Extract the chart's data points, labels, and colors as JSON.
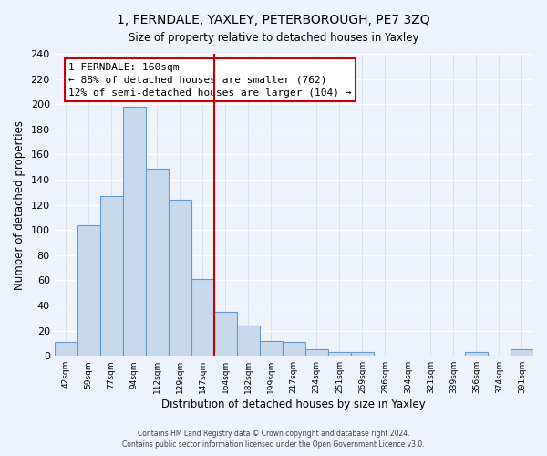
{
  "title": "1, FERNDALE, YAXLEY, PETERBOROUGH, PE7 3ZQ",
  "subtitle": "Size of property relative to detached houses in Yaxley",
  "xlabel": "Distribution of detached houses by size in Yaxley",
  "ylabel": "Number of detached properties",
  "bar_color": "#c8d9ee",
  "bar_edge_color": "#6699cc",
  "bin_labels": [
    "42sqm",
    "59sqm",
    "77sqm",
    "94sqm",
    "112sqm",
    "129sqm",
    "147sqm",
    "164sqm",
    "182sqm",
    "199sqm",
    "217sqm",
    "234sqm",
    "251sqm",
    "269sqm",
    "286sqm",
    "304sqm",
    "321sqm",
    "339sqm",
    "356sqm",
    "374sqm",
    "391sqm"
  ],
  "bar_heights": [
    11,
    104,
    127,
    198,
    149,
    124,
    61,
    35,
    24,
    12,
    11,
    5,
    3,
    3,
    0,
    0,
    0,
    0,
    3,
    0,
    5
  ],
  "vline_x_index": 7,
  "vline_color": "#cc0000",
  "annotation_title": "1 FERNDALE: 160sqm",
  "annotation_line1": "← 88% of detached houses are smaller (762)",
  "annotation_line2": "12% of semi-detached houses are larger (104) →",
  "annotation_box_color": "white",
  "annotation_box_edge": "#cc0000",
  "ylim": [
    0,
    240
  ],
  "yticks": [
    0,
    20,
    40,
    60,
    80,
    100,
    120,
    140,
    160,
    180,
    200,
    220,
    240
  ],
  "footer1": "Contains HM Land Registry data © Crown copyright and database right 2024.",
  "footer2": "Contains public sector information licensed under the Open Government Licence v3.0.",
  "background_color": "#eef2fa",
  "grid_color": "#d0d8e8"
}
